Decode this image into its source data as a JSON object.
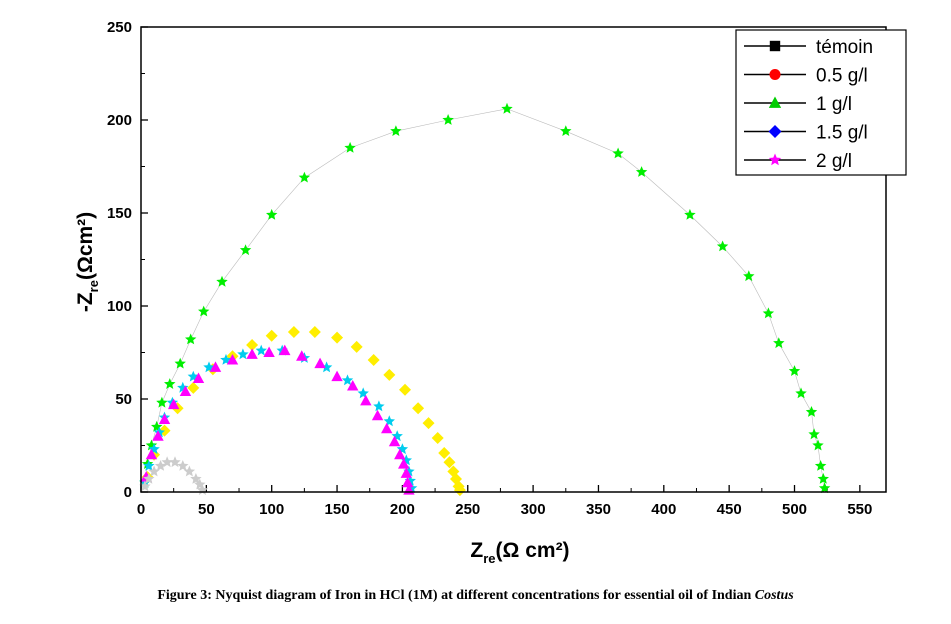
{
  "chart_data": {
    "type": "scatter",
    "title": "",
    "xlabel": {
      "main": "Z",
      "sub": "re",
      "unit": "(Ω cm²)"
    },
    "ylabel": {
      "main": "-Z",
      "sub": "re",
      "unit": "(Ωcm²)"
    },
    "xlim": [
      0,
      570
    ],
    "ylim": [
      0,
      250
    ],
    "x_ticks": [
      "0",
      "50",
      "100",
      "150",
      "200",
      "250",
      "300",
      "350",
      "400",
      "450",
      "500",
      "550"
    ],
    "y_ticks": [
      "0",
      "50",
      "100",
      "150",
      "200",
      "250"
    ],
    "legend_position": "top-right",
    "legend": [
      {
        "label": "témoin",
        "color": "#000000",
        "marker": "square"
      },
      {
        "label": "0.5 g/l",
        "color": "#ff0000",
        "marker": "circle"
      },
      {
        "label": "1 g/l",
        "color": "#00cc00",
        "marker": "triangle"
      },
      {
        "label": "1.5 g/l",
        "color": "#0000ff",
        "marker": "diamond"
      },
      {
        "label": "2 g/l",
        "color": "#ff00ff",
        "marker": "star"
      }
    ],
    "series": [
      {
        "color": "#00ee00",
        "marker": "star",
        "line": true,
        "x": [
          3,
          5,
          8,
          12,
          16,
          22,
          30,
          38,
          48,
          62,
          80,
          100,
          125,
          160,
          195,
          235,
          280,
          325,
          365,
          383,
          420,
          445,
          465,
          480,
          488,
          500,
          505,
          513,
          515,
          518,
          520,
          522,
          523
        ],
        "y": [
          5,
          15,
          25,
          35,
          48,
          58,
          69,
          82,
          97,
          113,
          130,
          149,
          169,
          185,
          194,
          200,
          206,
          194,
          182,
          172,
          149,
          132,
          116,
          96,
          80,
          65,
          53,
          43,
          31,
          25,
          14,
          7,
          2
        ]
      },
      {
        "color": "#ffee00",
        "marker": "diamond",
        "x": [
          5,
          10,
          18,
          28,
          40,
          55,
          70,
          85,
          100,
          117,
          133,
          150,
          165,
          178,
          190,
          202,
          212,
          220,
          227,
          232,
          236,
          239,
          241,
          243,
          244
        ],
        "y": [
          8,
          20,
          33,
          45,
          56,
          66,
          73,
          79,
          84,
          86,
          86,
          83,
          78,
          71,
          63,
          55,
          45,
          37,
          29,
          21,
          16,
          11,
          7,
          3,
          1
        ]
      },
      {
        "color": "#00ccee",
        "marker": "star",
        "x": [
          3,
          6,
          10,
          14,
          18,
          24,
          32,
          40,
          52,
          65,
          78,
          92,
          108,
          125,
          142,
          158,
          170,
          182,
          190,
          196,
          200,
          203,
          205,
          206,
          207
        ],
        "y": [
          5,
          14,
          23,
          32,
          40,
          48,
          56,
          62,
          67,
          71,
          74,
          76,
          76,
          72,
          67,
          60,
          53,
          46,
          38,
          30,
          23,
          17,
          11,
          6,
          2
        ]
      },
      {
        "color": "#ff00ff",
        "marker": "triangle",
        "x": [
          4,
          8,
          13,
          18,
          25,
          34,
          44,
          57,
          70,
          85,
          98,
          110,
          123,
          137,
          150,
          162,
          172,
          181,
          188,
          194,
          198,
          201,
          203,
          204,
          205
        ],
        "y": [
          8,
          20,
          30,
          39,
          47,
          54,
          61,
          67,
          71,
          74,
          75,
          76,
          73,
          69,
          62,
          57,
          49,
          41,
          34,
          27,
          20,
          15,
          10,
          5,
          1
        ]
      },
      {
        "color": "#cccccc",
        "marker": "star",
        "x": [
          3,
          6,
          10,
          15,
          20,
          26,
          32,
          37,
          42,
          45,
          47
        ],
        "y": [
          3,
          7,
          11,
          14,
          16,
          16,
          14,
          11,
          7,
          4,
          1
        ]
      }
    ]
  },
  "caption": {
    "text": "Figure 3: Nyquist diagram of Iron in HCl (1M) at different concentrations for essential oil of Indian ",
    "italic": "Costus"
  }
}
